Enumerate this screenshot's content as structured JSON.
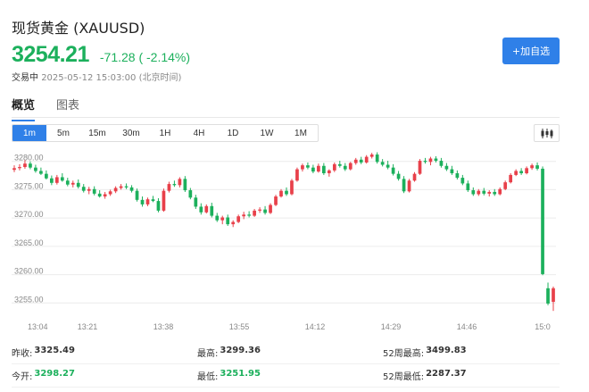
{
  "header": {
    "title": "现货黄金 (XAUUSD)",
    "price": "3254.21",
    "change": "-71.28 ( -2.14%)",
    "status": "交易中",
    "timestamp": "2025-05-12 15:03:00 (北京时间)",
    "add_watchlist_label": "+加自选"
  },
  "tabs": [
    {
      "label": "概览",
      "active": true
    },
    {
      "label": "图表",
      "active": false
    }
  ],
  "intervals": [
    {
      "label": "1m",
      "active": true
    },
    {
      "label": "5m",
      "active": false
    },
    {
      "label": "15m",
      "active": false
    },
    {
      "label": "30m",
      "active": false
    },
    {
      "label": "1H",
      "active": false
    },
    {
      "label": "4H",
      "active": false
    },
    {
      "label": "1D",
      "active": false
    },
    {
      "label": "1W",
      "active": false
    },
    {
      "label": "1M",
      "active": false
    }
  ],
  "chart_data": {
    "type": "candlestick",
    "up_color": "#e8404a",
    "down_color": "#1cb05c",
    "ylim": [
      3253,
      3282
    ],
    "y_ticks": [
      "3280.00",
      "3275.00",
      "3270.00",
      "3265.00",
      "3260.00",
      "3255.00"
    ],
    "y_tick_values": [
      3280,
      3275,
      3270,
      3265,
      3260,
      3255
    ],
    "x_ticks": [
      "13:04",
      "13:21",
      "13:38",
      "13:55",
      "14:12",
      "14:29",
      "14:46",
      "15:0"
    ],
    "x_range_minutes": [
      0,
      122
    ],
    "x_tick_minutes": [
      0,
      17,
      34,
      51,
      68,
      85,
      102,
      119
    ],
    "candles": [
      [
        3278.5,
        3279.3,
        3278.1,
        3278.8
      ],
      [
        3278.8,
        3279.5,
        3278.4,
        3279.0
      ],
      [
        3279.0,
        3280.2,
        3278.7,
        3279.6
      ],
      [
        3279.6,
        3280.0,
        3278.6,
        3278.9
      ],
      [
        3278.9,
        3279.4,
        3278.0,
        3278.3
      ],
      [
        3278.3,
        3278.9,
        3277.6,
        3277.8
      ],
      [
        3277.8,
        3278.4,
        3276.8,
        3277.0
      ],
      [
        3277.0,
        3277.5,
        3275.8,
        3276.2
      ],
      [
        3276.2,
        3277.6,
        3275.9,
        3277.2
      ],
      [
        3277.2,
        3277.9,
        3276.4,
        3276.6
      ],
      [
        3276.6,
        3277.1,
        3275.6,
        3275.9
      ],
      [
        3275.9,
        3276.6,
        3275.4,
        3276.2
      ],
      [
        3276.2,
        3276.8,
        3275.2,
        3275.5
      ],
      [
        3275.5,
        3276.0,
        3274.5,
        3274.8
      ],
      [
        3274.8,
        3275.5,
        3274.2,
        3275.1
      ],
      [
        3275.1,
        3275.6,
        3274.0,
        3274.3
      ],
      [
        3274.3,
        3274.9,
        3273.6,
        3273.8
      ],
      [
        3273.8,
        3274.6,
        3273.4,
        3274.2
      ],
      [
        3274.2,
        3275.0,
        3273.9,
        3274.7
      ],
      [
        3274.7,
        3275.6,
        3274.4,
        3275.3
      ],
      [
        3275.3,
        3276.0,
        3275.0,
        3275.6
      ],
      [
        3275.6,
        3276.1,
        3275.1,
        3275.4
      ],
      [
        3275.4,
        3275.8,
        3274.5,
        3274.8
      ],
      [
        3274.8,
        3275.2,
        3272.9,
        3273.2
      ],
      [
        3273.2,
        3273.8,
        3272.0,
        3272.4
      ],
      [
        3272.4,
        3273.6,
        3272.1,
        3273.3
      ],
      [
        3273.3,
        3273.9,
        3272.8,
        3273.0
      ],
      [
        3273.0,
        3273.5,
        3271.0,
        3271.3
      ],
      [
        3271.3,
        3275.2,
        3271.1,
        3274.8
      ],
      [
        3274.8,
        3276.4,
        3274.5,
        3276.0
      ],
      [
        3276.0,
        3276.6,
        3275.5,
        3275.8
      ],
      [
        3275.8,
        3277.2,
        3275.4,
        3276.9
      ],
      [
        3276.9,
        3277.4,
        3274.6,
        3274.9
      ],
      [
        3274.9,
        3275.3,
        3273.3,
        3273.6
      ],
      [
        3273.6,
        3274.1,
        3271.6,
        3272.0
      ],
      [
        3272.0,
        3272.6,
        3270.6,
        3271.0
      ],
      [
        3271.0,
        3272.4,
        3270.8,
        3272.1
      ],
      [
        3272.1,
        3272.7,
        3270.1,
        3270.4
      ],
      [
        3270.4,
        3270.9,
        3269.3,
        3269.6
      ],
      [
        3269.6,
        3270.4,
        3268.9,
        3270.1
      ],
      [
        3270.1,
        3270.6,
        3268.6,
        3268.9
      ],
      [
        3268.9,
        3269.6,
        3268.4,
        3269.3
      ],
      [
        3269.3,
        3270.6,
        3269.1,
        3270.3
      ],
      [
        3270.3,
        3271.1,
        3269.8,
        3270.6
      ],
      [
        3270.6,
        3271.2,
        3270.1,
        3270.4
      ],
      [
        3270.4,
        3271.6,
        3270.2,
        3271.3
      ],
      [
        3271.3,
        3271.9,
        3270.9,
        3271.5
      ],
      [
        3271.5,
        3272.1,
        3270.6,
        3270.9
      ],
      [
        3270.9,
        3272.6,
        3270.7,
        3272.3
      ],
      [
        3272.3,
        3274.1,
        3272.1,
        3273.8
      ],
      [
        3273.8,
        3275.1,
        3273.6,
        3274.8
      ],
      [
        3274.8,
        3275.4,
        3273.9,
        3274.2
      ],
      [
        3274.2,
        3276.9,
        3274.0,
        3276.6
      ],
      [
        3276.6,
        3278.9,
        3276.4,
        3278.6
      ],
      [
        3278.6,
        3279.6,
        3278.2,
        3279.3
      ],
      [
        3279.3,
        3279.8,
        3278.6,
        3278.9
      ],
      [
        3278.9,
        3279.4,
        3277.9,
        3278.2
      ],
      [
        3278.2,
        3279.6,
        3278.0,
        3279.2
      ],
      [
        3279.2,
        3279.7,
        3277.6,
        3277.9
      ],
      [
        3277.9,
        3278.6,
        3277.3,
        3278.4
      ],
      [
        3278.4,
        3279.8,
        3278.1,
        3279.5
      ],
      [
        3279.5,
        3280.1,
        3278.9,
        3279.2
      ],
      [
        3279.2,
        3279.7,
        3278.3,
        3278.6
      ],
      [
        3278.6,
        3279.9,
        3278.4,
        3279.7
      ],
      [
        3279.7,
        3280.6,
        3279.4,
        3280.3
      ],
      [
        3280.3,
        3280.8,
        3279.5,
        3279.8
      ],
      [
        3279.8,
        3281.1,
        3279.6,
        3280.8
      ],
      [
        3280.8,
        3281.5,
        3280.5,
        3281.2
      ],
      [
        3281.2,
        3281.6,
        3279.6,
        3279.9
      ],
      [
        3279.9,
        3280.4,
        3279.1,
        3279.4
      ],
      [
        3279.4,
        3280.1,
        3278.6,
        3278.9
      ],
      [
        3278.9,
        3279.5,
        3277.5,
        3277.8
      ],
      [
        3277.8,
        3278.3,
        3276.6,
        3276.9
      ],
      [
        3276.9,
        3277.4,
        3274.4,
        3274.7
      ],
      [
        3274.7,
        3276.9,
        3274.5,
        3276.6
      ],
      [
        3276.6,
        3278.1,
        3276.4,
        3277.8
      ],
      [
        3277.8,
        3280.4,
        3277.6,
        3280.1
      ],
      [
        3280.1,
        3280.6,
        3279.6,
        3279.9
      ],
      [
        3279.9,
        3280.8,
        3279.3,
        3280.5
      ],
      [
        3280.5,
        3280.9,
        3279.8,
        3280.1
      ],
      [
        3280.1,
        3280.6,
        3278.9,
        3279.2
      ],
      [
        3279.2,
        3279.7,
        3278.3,
        3278.6
      ],
      [
        3278.6,
        3279.2,
        3277.6,
        3277.9
      ],
      [
        3277.9,
        3278.4,
        3276.8,
        3277.1
      ],
      [
        3277.1,
        3277.6,
        3275.8,
        3276.1
      ],
      [
        3276.1,
        3276.6,
        3274.6,
        3274.9
      ],
      [
        3274.9,
        3275.4,
        3273.9,
        3274.2
      ],
      [
        3274.2,
        3275.1,
        3273.9,
        3274.8
      ],
      [
        3274.8,
        3275.3,
        3274.0,
        3274.3
      ],
      [
        3274.3,
        3274.9,
        3273.8,
        3274.6
      ],
      [
        3274.6,
        3275.1,
        3273.9,
        3274.2
      ],
      [
        3274.2,
        3275.4,
        3274.0,
        3275.1
      ],
      [
        3275.1,
        3276.6,
        3274.9,
        3276.3
      ],
      [
        3276.3,
        3277.9,
        3276.1,
        3277.6
      ],
      [
        3277.6,
        3278.6,
        3277.4,
        3278.3
      ],
      [
        3278.3,
        3278.8,
        3277.6,
        3277.9
      ],
      [
        3277.9,
        3279.1,
        3277.7,
        3278.8
      ],
      [
        3278.8,
        3279.6,
        3278.5,
        3279.3
      ],
      [
        3279.3,
        3279.8,
        3278.4,
        3278.7
      ],
      [
        3278.7,
        3279.1,
        3259.9,
        3260.1
      ],
      [
        3257.6,
        3258.6,
        3254.6,
        3254.9
      ],
      [
        3255.2,
        3257.9,
        3253.6,
        3257.6
      ]
    ]
  },
  "stats": {
    "prev_close_label": "昨收:",
    "prev_close": "3325.49",
    "high_label": "最高:",
    "high": "3299.36",
    "w52_high_label": "52周最高:",
    "w52_high": "3499.83",
    "open_label": "今开:",
    "open": "3298.27",
    "low_label": "最低:",
    "low": "3251.95",
    "w52_low_label": "52周最低:",
    "w52_low": "2287.37"
  },
  "icons": {
    "chart_type": "candlestick-icon"
  }
}
